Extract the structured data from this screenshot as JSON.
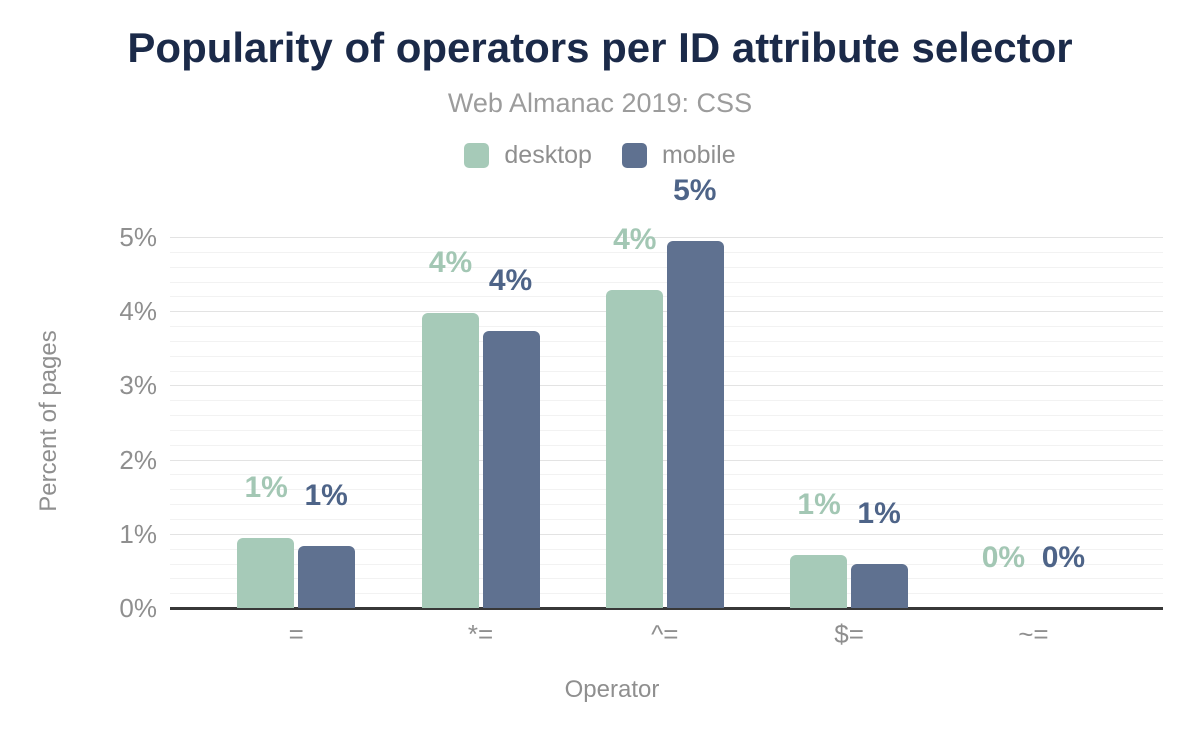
{
  "chart_data": {
    "type": "bar",
    "title": "Popularity of operators per ID attribute selector",
    "subtitle": "Web Almanac 2019: CSS",
    "xlabel": "Operator",
    "ylabel": "Percent of pages",
    "categories": [
      "=",
      "*=",
      "^=",
      "$=",
      "~="
    ],
    "series": [
      {
        "name": "desktop",
        "color": "#a6cab8",
        "label_color": "#a3c7b4",
        "values": [
          0.94,
          3.98,
          4.28,
          0.71,
          0
        ],
        "labels": [
          "1%",
          "4%",
          "4%",
          "1%",
          "0%"
        ]
      },
      {
        "name": "mobile",
        "color": "#5f7190",
        "label_color": "#4e6488",
        "values": [
          0.83,
          3.73,
          4.94,
          0.59,
          0
        ],
        "labels": [
          "1%",
          "4%",
          "5%",
          "1%",
          "0%"
        ]
      }
    ],
    "ylim": [
      0,
      5
    ],
    "yticks": [
      "0%",
      "1%",
      "2%",
      "3%",
      "4%",
      "5%"
    ],
    "grid": "major every 1%, minor every 0.2%",
    "legend_position": "top-center",
    "axis_line_color": "#383838",
    "text_colors": {
      "title": "#1b2a49",
      "subtitle": "#9c9c9c",
      "axis": "#8f8f8f"
    }
  }
}
